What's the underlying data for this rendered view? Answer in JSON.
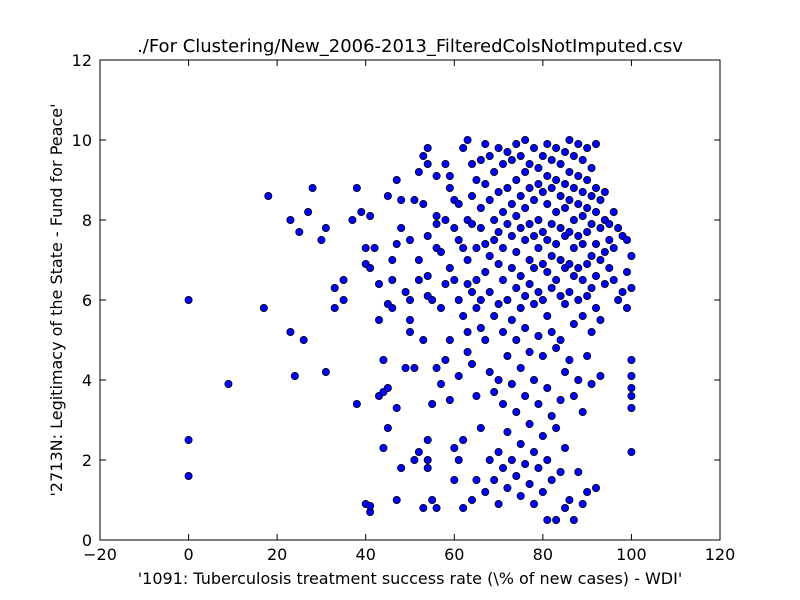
{
  "chart_data": {
    "type": "scatter",
    "title": "./For Clustering/New_2006-2013_FilteredColsNotImputed.csv",
    "xlabel": "'1091: Tuberculosis treatment success rate  (\\% of new cases) - WDI'",
    "ylabel": "'2713N: Legitimacy of the State - Fund for Peace'",
    "xlim": [
      -20,
      120
    ],
    "ylim": [
      0,
      12
    ],
    "xticks": [
      -20,
      0,
      20,
      40,
      60,
      80,
      100,
      120
    ],
    "yticks": [
      0,
      2,
      4,
      6,
      8,
      10,
      12
    ],
    "grid": false,
    "legend": "none",
    "marker_color": "#0000ff",
    "marker_edge_color": "#000000",
    "points": [
      [
        0,
        6.0
      ],
      [
        0,
        2.5
      ],
      [
        0,
        1.6
      ],
      [
        9,
        3.9
      ],
      [
        17,
        5.8
      ],
      [
        18,
        8.6
      ],
      [
        23,
        5.2
      ],
      [
        23,
        8.0
      ],
      [
        24,
        4.1
      ],
      [
        25,
        7.7
      ],
      [
        26,
        5.0
      ],
      [
        27,
        8.2
      ],
      [
        28,
        8.8
      ],
      [
        30,
        7.5
      ],
      [
        31,
        7.8
      ],
      [
        31,
        4.2
      ],
      [
        33,
        6.3
      ],
      [
        33,
        5.8
      ],
      [
        35,
        6.0
      ],
      [
        35,
        6.5
      ],
      [
        37,
        8.0
      ],
      [
        38,
        8.8
      ],
      [
        38,
        3.4
      ],
      [
        39,
        8.2
      ],
      [
        40,
        7.3
      ],
      [
        40,
        6.9
      ],
      [
        41,
        8.1
      ],
      [
        41,
        6.8
      ],
      [
        40,
        0.9
      ],
      [
        41,
        0.7
      ],
      [
        41,
        0.85
      ],
      [
        42,
        7.3
      ],
      [
        43,
        5.5
      ],
      [
        43,
        6.4
      ],
      [
        43,
        3.6
      ],
      [
        44,
        4.5
      ],
      [
        44,
        3.7
      ],
      [
        44,
        2.3
      ],
      [
        45,
        3.8
      ],
      [
        45,
        8.6
      ],
      [
        45,
        2.8
      ],
      [
        45,
        5.9
      ],
      [
        46,
        6.5
      ],
      [
        46,
        5.8
      ],
      [
        46,
        7.0
      ],
      [
        47,
        9.0
      ],
      [
        47,
        7.4
      ],
      [
        47,
        3.3
      ],
      [
        47,
        1.0
      ],
      [
        48,
        7.8
      ],
      [
        48,
        8.5
      ],
      [
        48,
        1.8
      ],
      [
        49,
        6.2
      ],
      [
        49,
        4.3
      ],
      [
        50,
        7.5
      ],
      [
        50,
        6.0
      ],
      [
        50,
        5.5
      ],
      [
        50,
        5.2
      ],
      [
        51,
        4.3
      ],
      [
        51,
        2.0
      ],
      [
        51,
        8.5
      ],
      [
        52,
        9.2
      ],
      [
        52,
        7.0
      ],
      [
        52,
        6.5
      ],
      [
        52,
        2.2
      ],
      [
        53,
        9.6
      ],
      [
        53,
        8.4
      ],
      [
        53,
        5.0
      ],
      [
        53,
        0.8
      ],
      [
        54,
        9.8
      ],
      [
        54,
        9.4
      ],
      [
        54,
        7.6
      ],
      [
        54,
        6.6
      ],
      [
        54,
        6.1
      ],
      [
        54,
        2.5
      ],
      [
        54,
        2.0
      ],
      [
        54,
        1.8
      ],
      [
        55,
        6.0
      ],
      [
        55,
        3.4
      ],
      [
        55,
        1.0
      ],
      [
        56,
        9.1
      ],
      [
        56,
        8.1
      ],
      [
        56,
        7.9
      ],
      [
        56,
        7.3
      ],
      [
        56,
        4.3
      ],
      [
        56,
        0.8
      ],
      [
        57,
        3.9
      ],
      [
        57,
        5.8
      ],
      [
        57,
        7.2
      ],
      [
        58,
        9.4
      ],
      [
        58,
        8.0
      ],
      [
        58,
        6.4
      ],
      [
        58,
        4.5
      ],
      [
        59,
        9.1
      ],
      [
        59,
        8.8
      ],
      [
        59,
        6.8
      ],
      [
        59,
        5.0
      ],
      [
        59,
        3.5
      ],
      [
        60,
        8.5
      ],
      [
        60,
        7.8
      ],
      [
        60,
        6.5
      ],
      [
        60,
        2.3
      ],
      [
        60,
        1.5
      ],
      [
        61,
        8.4
      ],
      [
        61,
        7.5
      ],
      [
        61,
        6.0
      ],
      [
        61,
        4.1
      ],
      [
        61,
        2.0
      ],
      [
        62,
        9.8
      ],
      [
        62,
        7.3
      ],
      [
        62,
        5.6
      ],
      [
        62,
        2.5
      ],
      [
        62,
        0.8
      ],
      [
        63,
        10.0
      ],
      [
        63,
        8.0
      ],
      [
        63,
        7.0
      ],
      [
        63,
        6.4
      ],
      [
        63,
        5.2
      ],
      [
        63,
        4.7
      ],
      [
        64,
        9.4
      ],
      [
        64,
        8.6
      ],
      [
        64,
        7.9
      ],
      [
        64,
        6.2
      ],
      [
        64,
        4.4
      ],
      [
        64,
        1.0
      ],
      [
        65,
        9.0
      ],
      [
        65,
        7.3
      ],
      [
        65,
        6.5
      ],
      [
        65,
        5.8
      ],
      [
        65,
        3.6
      ],
      [
        65,
        1.5
      ],
      [
        66,
        9.5
      ],
      [
        66,
        8.3
      ],
      [
        66,
        7.8
      ],
      [
        66,
        6.0
      ],
      [
        66,
        5.3
      ],
      [
        66,
        2.8
      ],
      [
        67,
        9.9
      ],
      [
        67,
        8.9
      ],
      [
        67,
        7.4
      ],
      [
        67,
        6.7
      ],
      [
        67,
        5.0
      ],
      [
        67,
        1.2
      ],
      [
        68,
        9.6
      ],
      [
        68,
        8.5
      ],
      [
        68,
        7.1
      ],
      [
        68,
        6.2
      ],
      [
        68,
        4.2
      ],
      [
        68,
        2.0
      ],
      [
        69,
        9.2
      ],
      [
        69,
        8.0
      ],
      [
        69,
        7.5
      ],
      [
        69,
        5.6
      ],
      [
        69,
        3.7
      ],
      [
        69,
        1.5
      ],
      [
        70,
        9.8
      ],
      [
        70,
        8.7
      ],
      [
        70,
        7.7
      ],
      [
        70,
        6.9
      ],
      [
        70,
        5.9
      ],
      [
        70,
        4.0
      ],
      [
        70,
        2.2
      ],
      [
        70,
        0.9
      ],
      [
        71,
        9.4
      ],
      [
        71,
        8.2
      ],
      [
        71,
        7.3
      ],
      [
        71,
        6.5
      ],
      [
        71,
        5.2
      ],
      [
        71,
        3.4
      ],
      [
        71,
        1.8
      ],
      [
        72,
        9.7
      ],
      [
        72,
        8.8
      ],
      [
        72,
        7.9
      ],
      [
        72,
        6.0
      ],
      [
        72,
        4.6
      ],
      [
        72,
        2.7
      ],
      [
        72,
        1.3
      ],
      [
        73,
        9.5
      ],
      [
        73,
        8.4
      ],
      [
        73,
        7.6
      ],
      [
        73,
        6.8
      ],
      [
        73,
        5.5
      ],
      [
        73,
        3.9
      ],
      [
        73,
        2.0
      ],
      [
        74,
        9.9
      ],
      [
        74,
        9.0
      ],
      [
        74,
        8.1
      ],
      [
        74,
        7.2
      ],
      [
        74,
        6.3
      ],
      [
        74,
        5.0
      ],
      [
        74,
        3.2
      ],
      [
        74,
        1.6
      ],
      [
        75,
        9.6
      ],
      [
        75,
        8.6
      ],
      [
        75,
        7.8
      ],
      [
        75,
        6.6
      ],
      [
        75,
        5.8
      ],
      [
        75,
        4.3
      ],
      [
        75,
        2.4
      ],
      [
        75,
        1.1
      ],
      [
        76,
        10.0
      ],
      [
        76,
        9.2
      ],
      [
        76,
        8.3
      ],
      [
        76,
        7.5
      ],
      [
        76,
        6.1
      ],
      [
        76,
        5.3
      ],
      [
        76,
        3.6
      ],
      [
        76,
        1.9
      ],
      [
        77,
        9.4
      ],
      [
        77,
        8.8
      ],
      [
        77,
        7.9
      ],
      [
        77,
        7.0
      ],
      [
        77,
        6.4
      ],
      [
        77,
        4.7
      ],
      [
        77,
        2.9
      ],
      [
        77,
        1.4
      ],
      [
        78,
        9.8
      ],
      [
        78,
        8.5
      ],
      [
        78,
        7.6
      ],
      [
        78,
        6.8
      ],
      [
        78,
        5.9
      ],
      [
        78,
        4.0
      ],
      [
        78,
        2.2
      ],
      [
        78,
        0.9
      ],
      [
        79,
        9.3
      ],
      [
        79,
        8.9
      ],
      [
        79,
        8.0
      ],
      [
        79,
        7.3
      ],
      [
        79,
        6.2
      ],
      [
        79,
        5.1
      ],
      [
        79,
        3.4
      ],
      [
        79,
        1.8
      ],
      [
        80,
        9.6
      ],
      [
        80,
        8.7
      ],
      [
        80,
        7.7
      ],
      [
        80,
        6.9
      ],
      [
        80,
        6.0
      ],
      [
        80,
        4.6
      ],
      [
        80,
        2.6
      ],
      [
        80,
        1.2
      ],
      [
        81,
        9.9
      ],
      [
        81,
        9.1
      ],
      [
        81,
        8.4
      ],
      [
        81,
        7.5
      ],
      [
        81,
        6.7
      ],
      [
        81,
        5.6
      ],
      [
        81,
        3.8
      ],
      [
        81,
        2.0
      ],
      [
        81,
        0.5
      ],
      [
        82,
        9.5
      ],
      [
        82,
        8.8
      ],
      [
        82,
        7.9
      ],
      [
        82,
        7.1
      ],
      [
        82,
        6.3
      ],
      [
        82,
        5.2
      ],
      [
        82,
        3.1
      ],
      [
        82,
        1.5
      ],
      [
        83,
        9.8
      ],
      [
        83,
        9.0
      ],
      [
        83,
        8.2
      ],
      [
        83,
        7.4
      ],
      [
        83,
        6.5
      ],
      [
        83,
        4.8
      ],
      [
        83,
        2.8
      ],
      [
        83,
        0.5
      ],
      [
        84,
        9.4
      ],
      [
        84,
        8.6
      ],
      [
        84,
        7.8
      ],
      [
        84,
        7.0
      ],
      [
        84,
        6.1
      ],
      [
        84,
        5.0
      ],
      [
        84,
        3.5
      ],
      [
        84,
        1.7
      ],
      [
        85,
        9.7
      ],
      [
        85,
        8.9
      ],
      [
        85,
        8.3
      ],
      [
        85,
        7.6
      ],
      [
        85,
        6.8
      ],
      [
        85,
        5.9
      ],
      [
        85,
        4.2
      ],
      [
        85,
        2.3
      ],
      [
        85,
        0.8
      ],
      [
        86,
        10.0
      ],
      [
        86,
        9.2
      ],
      [
        86,
        8.5
      ],
      [
        86,
        7.7
      ],
      [
        86,
        6.9
      ],
      [
        86,
        6.2
      ],
      [
        86,
        4.5
      ],
      [
        86,
        1.0
      ],
      [
        87,
        9.6
      ],
      [
        87,
        8.8
      ],
      [
        87,
        8.0
      ],
      [
        87,
        7.3
      ],
      [
        87,
        6.6
      ],
      [
        87,
        5.4
      ],
      [
        87,
        3.6
      ],
      [
        87,
        0.5
      ],
      [
        88,
        9.9
      ],
      [
        88,
        9.1
      ],
      [
        88,
        8.4
      ],
      [
        88,
        7.6
      ],
      [
        88,
        6.8
      ],
      [
        88,
        6.0
      ],
      [
        88,
        4.0
      ],
      [
        88,
        1.7
      ],
      [
        89,
        9.5
      ],
      [
        89,
        8.7
      ],
      [
        89,
        8.1
      ],
      [
        89,
        7.4
      ],
      [
        89,
        6.5
      ],
      [
        89,
        5.6
      ],
      [
        89,
        3.2
      ],
      [
        89,
        0.9
      ],
      [
        90,
        9.8
      ],
      [
        90,
        9.0
      ],
      [
        90,
        8.3
      ],
      [
        90,
        7.7
      ],
      [
        90,
        6.9
      ],
      [
        90,
        6.1
      ],
      [
        90,
        4.6
      ],
      [
        90,
        1.2
      ],
      [
        91,
        9.3
      ],
      [
        91,
        8.6
      ],
      [
        91,
        7.9
      ],
      [
        91,
        7.1
      ],
      [
        91,
        6.3
      ],
      [
        91,
        5.2
      ],
      [
        91,
        3.9
      ],
      [
        92,
        9.9
      ],
      [
        92,
        8.8
      ],
      [
        92,
        8.2
      ],
      [
        92,
        7.4
      ],
      [
        92,
        6.6
      ],
      [
        92,
        5.8
      ],
      [
        92,
        1.3
      ],
      [
        93,
        8.5
      ],
      [
        93,
        7.8
      ],
      [
        93,
        7.0
      ],
      [
        93,
        5.5
      ],
      [
        93,
        4.1
      ],
      [
        94,
        8.7
      ],
      [
        94,
        8.0
      ],
      [
        94,
        7.2
      ],
      [
        94,
        6.4
      ],
      [
        95,
        7.9
      ],
      [
        95,
        7.5
      ],
      [
        95,
        6.8
      ],
      [
        96,
        8.2
      ],
      [
        96,
        7.3
      ],
      [
        96,
        6.5
      ],
      [
        97,
        7.8
      ],
      [
        97,
        6.0
      ],
      [
        98,
        7.6
      ],
      [
        98,
        6.2
      ],
      [
        99,
        7.5
      ],
      [
        99,
        6.7
      ],
      [
        99,
        5.8
      ],
      [
        100,
        7.1
      ],
      [
        100,
        6.3
      ],
      [
        100,
        4.5
      ],
      [
        100,
        4.1
      ],
      [
        100,
        3.8
      ],
      [
        100,
        3.6
      ],
      [
        100,
        3.3
      ],
      [
        100,
        2.2
      ]
    ]
  }
}
